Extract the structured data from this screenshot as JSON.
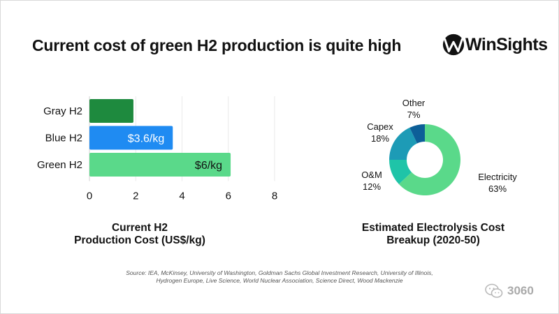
{
  "title": "Current cost of green H2 production is quite high",
  "logo": {
    "text": "WinSights",
    "mark_icon": "w-logo-icon"
  },
  "chart_data": [
    {
      "type": "bar",
      "orientation": "horizontal",
      "categories": [
        "Gray H2",
        "Blue H2",
        "Green H2"
      ],
      "values": [
        1.9,
        3.6,
        6.1
      ],
      "data_labels": [
        "",
        "$3.6/kg",
        "$6/kg"
      ],
      "colors": [
        "#1e8a3e",
        "#1f8bf2",
        "#5ad98a"
      ],
      "xlim": [
        0,
        8
      ],
      "xticks": [
        "0",
        "2",
        "4",
        "6",
        "8"
      ],
      "grid": true,
      "caption_lines": [
        "Current H2",
        "Production Cost (US$/kg)"
      ]
    },
    {
      "type": "pie",
      "donut": true,
      "slices": [
        {
          "label": "Electricity",
          "value": 63,
          "value_label": "63%",
          "color": "#5ad98a"
        },
        {
          "label": "O&M",
          "value": 12,
          "value_label": "12%",
          "color": "#1fc4a8"
        },
        {
          "label": "Capex",
          "value": 18,
          "value_label": "18%",
          "color": "#1d9bb6"
        },
        {
          "label": "Other",
          "value": 7,
          "value_label": "7%",
          "color": "#0d5f98"
        }
      ],
      "caption_lines": [
        "Estimated Electrolysis Cost",
        "Breakup (2020-50)"
      ]
    }
  ],
  "source": {
    "line1": "Source: IEA, McKinsey, University of Washington, Goldman Sachs Global Investment Research, University of Illinois,",
    "line2": "Hydrogen Europe, Live Science, World Nuclear Association, Science Direct, Wood Mackenzie"
  },
  "watermark": {
    "icon": "wechat-icon",
    "text": "3060"
  }
}
